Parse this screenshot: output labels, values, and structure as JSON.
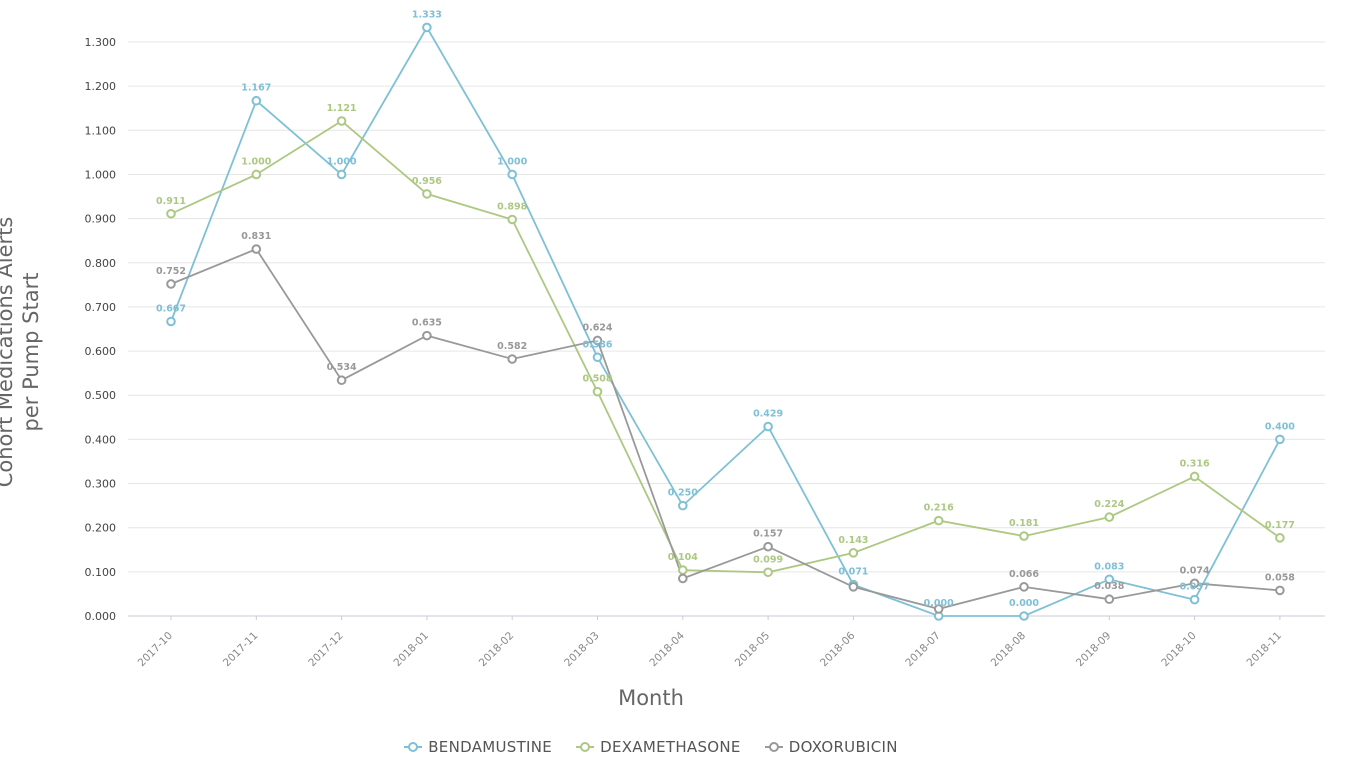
{
  "chart_data": {
    "type": "line",
    "xlabel": "Month",
    "ylabel_lines": [
      "Cohort Medications Alerts",
      "per Pump Start"
    ],
    "ylim": [
      0,
      1.3
    ],
    "yticks": [
      "0.000",
      "0.100",
      "0.200",
      "0.300",
      "0.400",
      "0.500",
      "0.600",
      "0.700",
      "0.800",
      "0.900",
      "1.000",
      "1.100",
      "1.200",
      "1.300"
    ],
    "grid": true,
    "legend_position": "bottom",
    "categories": [
      "2017-10",
      "2017-11",
      "2017-12",
      "2018-01",
      "2018-02",
      "2018-03",
      "2018-04",
      "2018-05",
      "2018-06",
      "2018-07",
      "2018-08",
      "2018-09",
      "2018-10",
      "2018-11"
    ],
    "series": [
      {
        "name": "BENDAMUSTINE",
        "color": "#7ec0d6",
        "values": [
          0.667,
          1.167,
          1.0,
          1.333,
          1.0,
          0.586,
          0.25,
          0.429,
          0.071,
          0.0,
          0.0,
          0.083,
          0.037,
          0.4
        ],
        "labels": [
          "0.667",
          "1.167",
          "1.000",
          "1.333",
          "1.000",
          "0.586",
          "0.250",
          "0.429",
          "0.071",
          "0.000",
          "0.000",
          "0.083",
          "0.037",
          "0.400"
        ]
      },
      {
        "name": "DEXAMETHASONE",
        "color": "#acc882",
        "values": [
          0.911,
          1.0,
          1.121,
          0.956,
          0.898,
          0.508,
          0.104,
          0.099,
          0.143,
          0.216,
          0.181,
          0.224,
          0.316,
          0.177
        ],
        "labels": [
          "0.911",
          "1.000",
          "1.121",
          "0.956",
          "0.898",
          "0.508",
          "0.104",
          "0.099",
          "0.143",
          "0.216",
          "0.181",
          "0.224",
          "0.316",
          "0.177"
        ]
      },
      {
        "name": "DOXORUBICIN",
        "color": "#999999",
        "values": [
          0.752,
          0.831,
          0.534,
          0.635,
          0.582,
          0.624,
          0.085,
          0.157,
          0.066,
          0.016,
          0.066,
          0.038,
          0.074,
          0.058
        ],
        "labels": [
          "0.752",
          "0.831",
          "0.534",
          "0.635",
          "0.582",
          "0.624",
          "",
          "0.157",
          "",
          "",
          "0.066",
          "0.038",
          "0.074",
          "0.058"
        ]
      }
    ]
  }
}
